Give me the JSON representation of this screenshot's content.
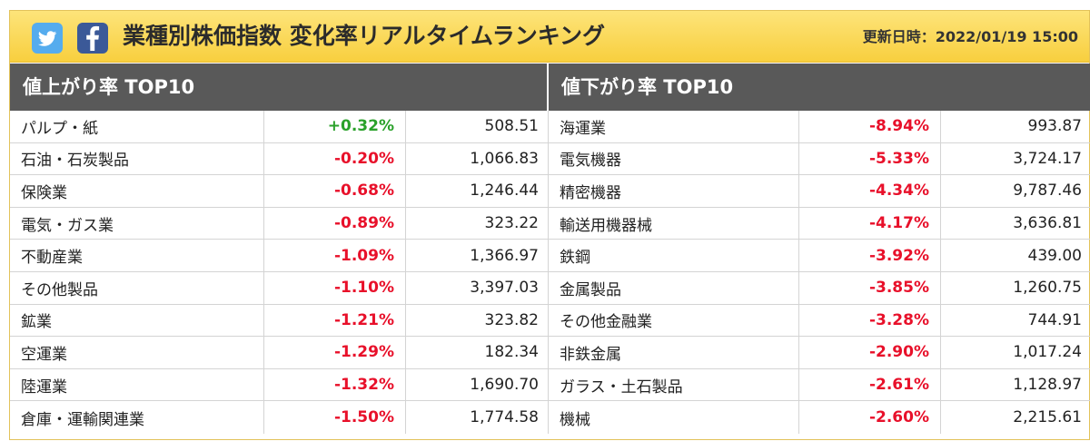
{
  "header": {
    "title": "業種別株価指数 変化率リアルタイムランキング",
    "updated": "更新日時：2022/01/19 15:00",
    "icons": [
      "twitter-icon",
      "facebook-icon"
    ]
  },
  "colors": {
    "header_bg": "#f8cf3e",
    "panel_head_bg": "#595959",
    "up": "#2aa12a",
    "down": "#e8102a"
  },
  "gainers": {
    "heading": "値上がり率 TOP10",
    "rows": [
      {
        "name": "パルプ・紙",
        "pct": "+0.32%",
        "value": "508.51"
      },
      {
        "name": "石油・石炭製品",
        "pct": "-0.20%",
        "value": "1,066.83"
      },
      {
        "name": "保険業",
        "pct": "-0.68%",
        "value": "1,246.44"
      },
      {
        "name": "電気・ガス業",
        "pct": "-0.89%",
        "value": "323.22"
      },
      {
        "name": "不動産業",
        "pct": "-1.09%",
        "value": "1,366.97"
      },
      {
        "name": "その他製品",
        "pct": "-1.10%",
        "value": "3,397.03"
      },
      {
        "name": "鉱業",
        "pct": "-1.21%",
        "value": "323.82"
      },
      {
        "name": "空運業",
        "pct": "-1.29%",
        "value": "182.34"
      },
      {
        "name": "陸運業",
        "pct": "-1.32%",
        "value": "1,690.70"
      },
      {
        "name": "倉庫・運輸関連業",
        "pct": "-1.50%",
        "value": "1,774.58"
      }
    ]
  },
  "losers": {
    "heading": "値下がり率 TOP10",
    "rows": [
      {
        "name": "海運業",
        "pct": "-8.94%",
        "value": "993.87"
      },
      {
        "name": "電気機器",
        "pct": "-5.33%",
        "value": "3,724.17"
      },
      {
        "name": "精密機器",
        "pct": "-4.34%",
        "value": "9,787.46"
      },
      {
        "name": "輸送用機器械",
        "pct": "-4.17%",
        "value": "3,636.81"
      },
      {
        "name": "鉄鋼",
        "pct": "-3.92%",
        "value": "439.00"
      },
      {
        "name": "金属製品",
        "pct": "-3.85%",
        "value": "1,260.75"
      },
      {
        "name": "その他金融業",
        "pct": "-3.28%",
        "value": "744.91"
      },
      {
        "name": "非鉄金属",
        "pct": "-2.90%",
        "value": "1,017.24"
      },
      {
        "name": "ガラス・土石製品",
        "pct": "-2.61%",
        "value": "1,128.97"
      },
      {
        "name": "機械",
        "pct": "-2.60%",
        "value": "2,215.61"
      }
    ]
  }
}
